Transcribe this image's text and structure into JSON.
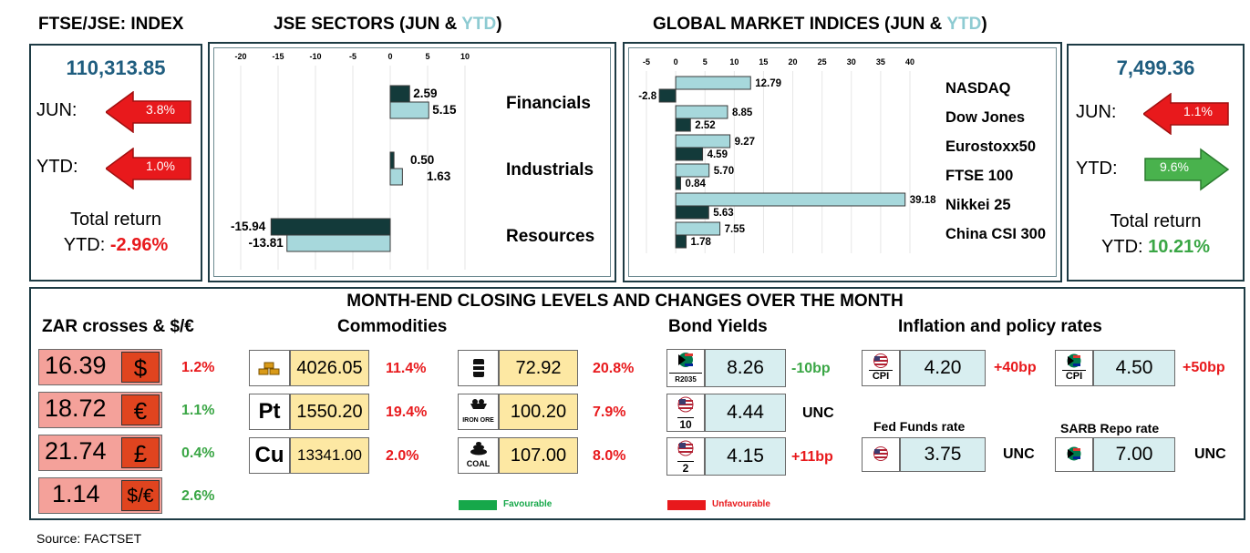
{
  "left_panel": {
    "title": "FTSE/JSE: INDEX",
    "value": "110,313.85",
    "jun_label": "JUN:",
    "jun_change": "3.8%",
    "ytd_label": "YTD:",
    "ytd_change": "1.0%",
    "total_label": "Total return",
    "total_ytd_label": "YTD:",
    "total_ytd_value": "-2.96%"
  },
  "right_panel": {
    "value": "7,499.36",
    "jun_label": "JUN:",
    "jun_change": "1.1%",
    "ytd_label": "YTD:",
    "ytd_change": "9.6%",
    "total_label": "Total return",
    "total_ytd_label": "YTD:",
    "total_ytd_value": "10.21%"
  },
  "sectors_header": {
    "main": "JSE SECTORS (JUN & ",
    "ytd": "YTD",
    "close": ")"
  },
  "global_header": {
    "main": "GLOBAL MARKET INDICES (JUN & ",
    "ytd": "YTD",
    "close": ")"
  },
  "colors": {
    "jun": "#133a3a",
    "ytd": "#a7d8dc",
    "red": "#e8191c",
    "green": "#3aa645"
  },
  "chart_data": [
    {
      "type": "bar",
      "orientation": "horizontal",
      "categories": [
        "Financials",
        "Industrials",
        "Resources"
      ],
      "series": [
        {
          "values": [
            2.59,
            0.5,
            -15.94
          ],
          "labels": [
            "2.59",
            "0.50",
            "-15.94"
          ]
        },
        {
          "values": [
            5.15,
            1.63,
            -13.81
          ],
          "labels": [
            "5.15",
            "1.63",
            "-13.81"
          ]
        }
      ],
      "xlim": [
        -20,
        10
      ],
      "xticks": [
        "-20",
        "-15",
        "-10",
        "-5",
        "0",
        "5",
        "10"
      ]
    },
    {
      "type": "bar",
      "orientation": "horizontal",
      "categories": [
        "NASDAQ",
        "Dow Jones",
        "Eurostoxx50",
        "FTSE 100",
        "Nikkei 25",
        "China CSI 300"
      ],
      "series": [
        {
          "values": [
            -2.8,
            2.52,
            4.59,
            0.84,
            5.63,
            1.78
          ],
          "labels": [
            "-2.8",
            "2.52",
            "4.59",
            "0.84",
            "5.63",
            "1.78"
          ]
        },
        {
          "values": [
            12.79,
            8.85,
            9.27,
            5.7,
            39.18,
            7.55
          ],
          "labels": [
            "12.79",
            "8.85",
            "9.27",
            "5.70",
            "39.18",
            "7.55"
          ]
        }
      ],
      "xlim": [
        -5,
        40
      ],
      "xticks": [
        "-5",
        "0",
        "5",
        "10",
        "15",
        "20",
        "25",
        "30",
        "35",
        "40"
      ]
    }
  ],
  "bottom": {
    "title": "MONTH-END CLOSING LEVELS AND CHANGES OVER THE MONTH",
    "zar_header": "ZAR crosses & $/€",
    "commodities_header": "Commodities",
    "bonds_header": "Bond Yields",
    "inflation_header": "Inflation and policy rates",
    "zar": [
      {
        "value": "16.39",
        "symbol": "$",
        "change": "1.2%",
        "tone": "red"
      },
      {
        "value": "18.72",
        "symbol": "€",
        "change": "1.1%",
        "tone": "green"
      },
      {
        "value": "21.74",
        "symbol": "£",
        "change": "0.4%",
        "tone": "green"
      },
      {
        "value": "1.14",
        "symbol": "$/€",
        "change": "2.6%",
        "tone": "green"
      }
    ],
    "commodities_left": [
      {
        "icon": "gold-bars-icon",
        "label": "",
        "value": "4026.05",
        "change": "11.4%"
      },
      {
        "icon": "",
        "label": "Pt",
        "value": "1550.20",
        "change": "19.4%"
      },
      {
        "icon": "",
        "label": "Cu",
        "value": "13341.00",
        "change": "2.0%"
      }
    ],
    "commodities_right": [
      {
        "icon": "oil-barrel-icon",
        "label": "",
        "value": "72.92",
        "change": "20.8%"
      },
      {
        "icon": "mine-cart-icon",
        "label": "IRON ORE",
        "value": "100.20",
        "change": "7.9%"
      },
      {
        "icon": "coal-icon",
        "label": "COAL",
        "value": "107.00",
        "change": "8.0%"
      }
    ],
    "bonds": [
      {
        "icon": "sa-flag-icon",
        "label": "R2035",
        "value": "8.26",
        "change": "-10bp",
        "tone": "green"
      },
      {
        "icon": "us-flag-icon",
        "label": "10",
        "value": "4.44",
        "change": "UNC",
        "tone": "black"
      },
      {
        "icon": "us-flag-icon",
        "label": "2",
        "value": "4.15",
        "change": "+11bp",
        "tone": "red"
      }
    ],
    "us_cpi": {
      "label": "CPI",
      "value": "4.20",
      "change": "+40bp"
    },
    "sa_cpi": {
      "label": "CPI",
      "value": "4.50",
      "change": "+50bp"
    },
    "fed_label": "Fed Funds rate",
    "fed": {
      "value": "3.75",
      "change": "UNC"
    },
    "sarb_label": "SARB Repo rate",
    "sarb": {
      "value": "7.00",
      "change": "UNC"
    },
    "legend_favourable": "Favourable",
    "legend_unfavourable": "Unfavourable"
  },
  "source": "Source: FACTSET"
}
